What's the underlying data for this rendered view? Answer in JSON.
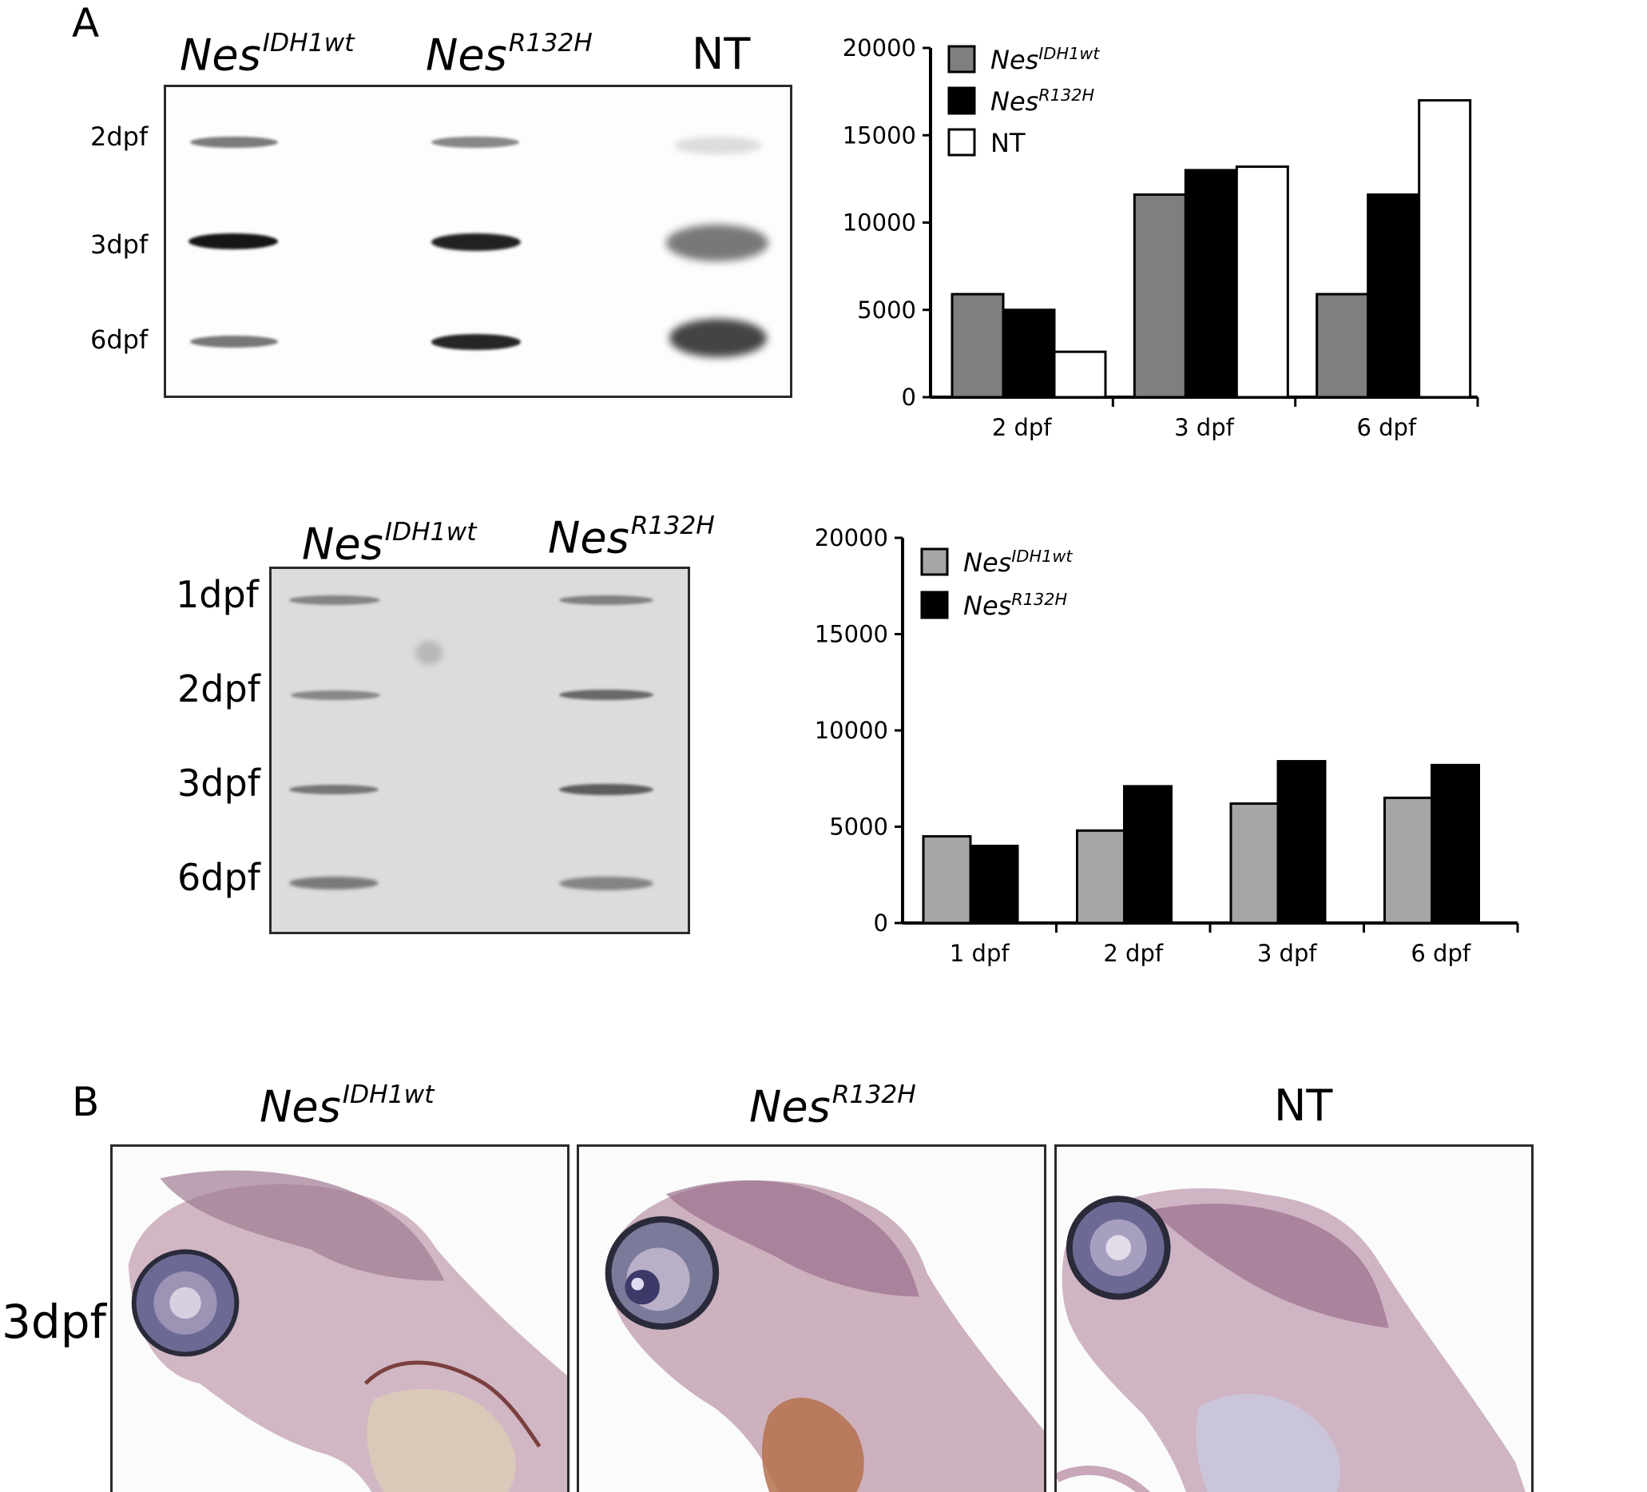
{
  "panel_a": {
    "letter": "A",
    "blot1": {
      "lanes": [
        {
          "name": "Nes",
          "sup": "IDH1wt"
        },
        {
          "name": "Nes",
          "sup": "R132H"
        },
        {
          "name": "NT",
          "sup": ""
        }
      ],
      "rows": [
        "2dpf",
        "3dpf",
        "6dpf"
      ]
    },
    "blot2": {
      "lanes": [
        {
          "name": "Nes",
          "sup": "IDH1wt"
        },
        {
          "name": "Nes",
          "sup": "R132H"
        }
      ],
      "rows": [
        "1dpf",
        "2dpf",
        "3dpf",
        "6dpf"
      ]
    }
  },
  "panel_b": {
    "letter": "B",
    "columns": [
      {
        "name": "Nes",
        "sup": "IDH1wt"
      },
      {
        "name": "Nes",
        "sup": "R132H"
      },
      {
        "name": "NT",
        "sup": ""
      }
    ],
    "row_label": "3dpf"
  },
  "chart_data": [
    {
      "type": "bar",
      "categories": [
        "2 dpf",
        "3 dpf",
        "6 dpf"
      ],
      "series": [
        {
          "name": "Nes",
          "name_sup": "IDH1wt",
          "color": "#7f7f7f",
          "values": [
            5900,
            11600,
            5900
          ]
        },
        {
          "name": "Nes",
          "name_sup": "R132H",
          "color": "#000000",
          "values": [
            5000,
            13000,
            11600
          ]
        },
        {
          "name": "NT",
          "name_sup": "",
          "color": "#ffffff",
          "values": [
            2600,
            13200,
            17000
          ]
        }
      ],
      "ylim": [
        0,
        20000
      ],
      "yticks": [
        "20000",
        "15000",
        "10000",
        "5000",
        "0"
      ],
      "legend": "top-left",
      "grid": false
    },
    {
      "type": "bar",
      "categories": [
        "1 dpf",
        "2 dpf",
        "3 dpf",
        "6 dpf"
      ],
      "series": [
        {
          "name": "Nes",
          "name_sup": "IDH1wt",
          "color": "#a6a6a6",
          "values": [
            4500,
            4800,
            6200,
            6500
          ]
        },
        {
          "name": "Nes",
          "name_sup": "R132H",
          "color": "#000000",
          "values": [
            4000,
            7100,
            8400,
            8200
          ]
        }
      ],
      "ylim": [
        0,
        20000
      ],
      "yticks": [
        "20000",
        "15000",
        "10000",
        "5000",
        "0"
      ],
      "legend": "top-left",
      "grid": false
    }
  ]
}
